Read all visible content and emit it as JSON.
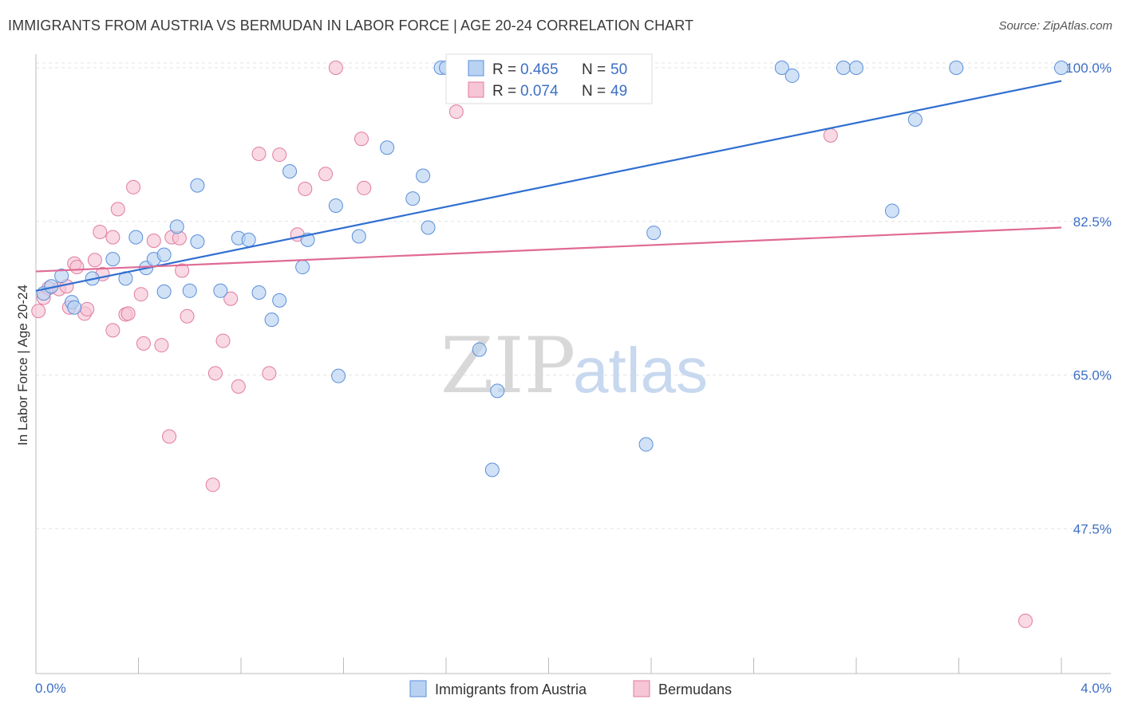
{
  "title": "IMMIGRANTS FROM AUSTRIA VS BERMUDAN IN LABOR FORCE | AGE 20-24 CORRELATION CHART",
  "source": "Source: ZipAtlas.com",
  "colors": {
    "blue": "#5b8fd9",
    "blue_fill": "#b9d2f2",
    "pink": "#e07ca0",
    "pink_fill": "#f6c5d6",
    "blue_line": "#2f6fd0",
    "pink_line": "#e06a95",
    "tick_text": "#3d6fc4"
  },
  "legend": {
    "rows": [
      {
        "r_label": "R = ",
        "r_value": "0.465",
        "n_label": "N = ",
        "n_value": "50"
      },
      {
        "r_label": "R = ",
        "r_value": "0.074",
        "n_label": "N = ",
        "n_value": "49"
      }
    ]
  },
  "bottom_legend": [
    "Immigrants from Austria",
    "Bermudans"
  ],
  "watermark": {
    "zip": "ZIP",
    "atlas": "atlas"
  },
  "chart_data": {
    "type": "scatter",
    "title": "IMMIGRANTS FROM AUSTRIA VS BERMUDAN IN LABOR FORCE | AGE 20-24 CORRELATION CHART",
    "xlabel": "",
    "ylabel": "In Labor Force | Age 20-24",
    "xlim": [
      0.0,
      4.0
    ],
    "ylim": [
      31.0,
      102.0
    ],
    "x_tick_labels": [
      "0.0%",
      "4.0%"
    ],
    "y_ticks": [
      47.5,
      65.0,
      82.5,
      100.0
    ],
    "y_tick_labels": [
      "47.5%",
      "65.0%",
      "82.5%",
      "100.0%"
    ],
    "grid": true,
    "series": [
      {
        "name": "Immigrants from Austria",
        "trend": [
          [
            0.0,
            74.6
          ],
          [
            4.0,
            98.5
          ]
        ],
        "points": [
          [
            0.03,
            74.3
          ],
          [
            0.06,
            75.1
          ],
          [
            0.1,
            76.3
          ],
          [
            0.14,
            73.3
          ],
          [
            0.15,
            72.7
          ],
          [
            0.22,
            76.0
          ],
          [
            0.3,
            78.2
          ],
          [
            0.35,
            76.0
          ],
          [
            0.39,
            80.7
          ],
          [
            0.43,
            77.2
          ],
          [
            0.46,
            78.2
          ],
          [
            0.5,
            78.7
          ],
          [
            0.5,
            74.5
          ],
          [
            0.55,
            81.9
          ],
          [
            0.6,
            74.6
          ],
          [
            0.63,
            86.6
          ],
          [
            0.63,
            80.2
          ],
          [
            0.72,
            74.6
          ],
          [
            0.79,
            80.6
          ],
          [
            0.83,
            80.4
          ],
          [
            0.87,
            74.4
          ],
          [
            0.92,
            71.3
          ],
          [
            0.95,
            73.5
          ],
          [
            0.99,
            88.2
          ],
          [
            1.04,
            77.3
          ],
          [
            1.06,
            80.4
          ],
          [
            1.17,
            84.3
          ],
          [
            1.18,
            64.9
          ],
          [
            1.26,
            80.8
          ],
          [
            1.37,
            90.9
          ],
          [
            1.47,
            85.1
          ],
          [
            1.51,
            87.7
          ],
          [
            1.53,
            81.8
          ],
          [
            1.58,
            100.0
          ],
          [
            1.6,
            100.0
          ],
          [
            1.63,
            100.0
          ],
          [
            1.73,
            67.9
          ],
          [
            1.78,
            54.2
          ],
          [
            1.8,
            63.2
          ],
          [
            2.18,
            100.0
          ],
          [
            2.38,
            57.1
          ],
          [
            2.41,
            81.2
          ],
          [
            2.91,
            100.0
          ],
          [
            2.95,
            99.1
          ],
          [
            3.15,
            100.0
          ],
          [
            3.2,
            100.0
          ],
          [
            3.34,
            83.7
          ],
          [
            3.43,
            94.1
          ],
          [
            3.59,
            100.0
          ],
          [
            4.0,
            100.0
          ]
        ]
      },
      {
        "name": "Bermudans",
        "trend": [
          [
            0.0,
            76.8
          ],
          [
            4.0,
            81.8
          ]
        ],
        "points": [
          [
            0.01,
            72.3
          ],
          [
            0.03,
            73.8
          ],
          [
            0.05,
            74.9
          ],
          [
            0.09,
            74.8
          ],
          [
            0.12,
            75.1
          ],
          [
            0.13,
            72.7
          ],
          [
            0.15,
            77.7
          ],
          [
            0.16,
            77.3
          ],
          [
            0.19,
            72.0
          ],
          [
            0.2,
            72.5
          ],
          [
            0.23,
            78.1
          ],
          [
            0.25,
            81.3
          ],
          [
            0.26,
            76.5
          ],
          [
            0.3,
            70.1
          ],
          [
            0.3,
            80.7
          ],
          [
            0.32,
            83.9
          ],
          [
            0.35,
            71.9
          ],
          [
            0.36,
            72.0
          ],
          [
            0.38,
            86.4
          ],
          [
            0.41,
            74.2
          ],
          [
            0.42,
            68.6
          ],
          [
            0.46,
            80.3
          ],
          [
            0.49,
            68.4
          ],
          [
            0.52,
            58.0
          ],
          [
            0.53,
            80.7
          ],
          [
            0.56,
            80.6
          ],
          [
            0.57,
            76.9
          ],
          [
            0.59,
            71.7
          ],
          [
            0.69,
            52.5
          ],
          [
            0.7,
            65.2
          ],
          [
            0.73,
            68.9
          ],
          [
            0.76,
            73.7
          ],
          [
            0.79,
            63.7
          ],
          [
            0.87,
            90.2
          ],
          [
            0.91,
            65.2
          ],
          [
            0.95,
            90.1
          ],
          [
            1.02,
            81.0
          ],
          [
            1.05,
            86.2
          ],
          [
            1.13,
            87.9
          ],
          [
            1.17,
            100.0
          ],
          [
            1.27,
            91.9
          ],
          [
            1.28,
            86.3
          ],
          [
            1.63,
            100.0
          ],
          [
            1.64,
            95.0
          ],
          [
            1.78,
            100.0
          ],
          [
            1.94,
            100.0
          ],
          [
            2.23,
            100.0
          ],
          [
            3.1,
            92.3
          ],
          [
            3.86,
            37.0
          ]
        ]
      }
    ]
  }
}
